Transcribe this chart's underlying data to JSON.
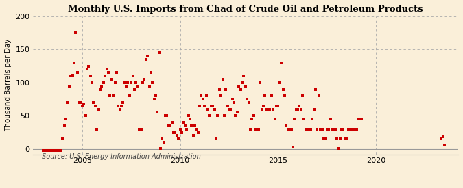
{
  "title": "Monthly U.S. Imports from Chad of Crude Oil and Petroleum Products",
  "ylabel": "Thousand Barrels per Day",
  "source": "Source: U.S. Energy Information Administration",
  "background_color": "#faefd9",
  "dot_color": "#cc0000",
  "ylim_min": -8,
  "ylim_max": 200,
  "yticks": [
    0,
    50,
    100,
    150,
    200
  ],
  "xlim_start": 2002.5,
  "xlim_end": 2024.2,
  "xticks": [
    2005,
    2010,
    2015,
    2020
  ],
  "data": [
    [
      2003.0,
      -2
    ],
    [
      2003.08,
      -2
    ],
    [
      2003.17,
      -2
    ],
    [
      2003.25,
      -2
    ],
    [
      2003.33,
      -2
    ],
    [
      2003.42,
      -2
    ],
    [
      2003.5,
      -2
    ],
    [
      2003.58,
      -2
    ],
    [
      2003.67,
      -2
    ],
    [
      2003.75,
      -2
    ],
    [
      2003.83,
      -2
    ],
    [
      2003.92,
      -2
    ],
    [
      2004.0,
      15
    ],
    [
      2004.08,
      35
    ],
    [
      2004.17,
      45
    ],
    [
      2004.25,
      70
    ],
    [
      2004.33,
      95
    ],
    [
      2004.42,
      110
    ],
    [
      2004.5,
      111
    ],
    [
      2004.58,
      130
    ],
    [
      2004.67,
      175
    ],
    [
      2004.75,
      115
    ],
    [
      2004.83,
      70
    ],
    [
      2004.92,
      70
    ],
    [
      2005.0,
      65
    ],
    [
      2005.08,
      68
    ],
    [
      2005.17,
      50
    ],
    [
      2005.25,
      120
    ],
    [
      2005.33,
      125
    ],
    [
      2005.42,
      110
    ],
    [
      2005.5,
      100
    ],
    [
      2005.58,
      70
    ],
    [
      2005.67,
      65
    ],
    [
      2005.75,
      30
    ],
    [
      2005.83,
      60
    ],
    [
      2005.92,
      90
    ],
    [
      2006.0,
      95
    ],
    [
      2006.08,
      100
    ],
    [
      2006.17,
      110
    ],
    [
      2006.25,
      120
    ],
    [
      2006.33,
      115
    ],
    [
      2006.42,
      80
    ],
    [
      2006.5,
      105
    ],
    [
      2006.58,
      80
    ],
    [
      2006.67,
      100
    ],
    [
      2006.75,
      115
    ],
    [
      2006.83,
      65
    ],
    [
      2006.92,
      60
    ],
    [
      2007.0,
      65
    ],
    [
      2007.08,
      70
    ],
    [
      2007.17,
      100
    ],
    [
      2007.25,
      95
    ],
    [
      2007.33,
      100
    ],
    [
      2007.42,
      80
    ],
    [
      2007.5,
      100
    ],
    [
      2007.58,
      110
    ],
    [
      2007.67,
      90
    ],
    [
      2007.75,
      100
    ],
    [
      2007.83,
      95
    ],
    [
      2007.92,
      30
    ],
    [
      2008.0,
      30
    ],
    [
      2008.08,
      100
    ],
    [
      2008.17,
      105
    ],
    [
      2008.25,
      135
    ],
    [
      2008.33,
      140
    ],
    [
      2008.42,
      95
    ],
    [
      2008.5,
      115
    ],
    [
      2008.58,
      100
    ],
    [
      2008.67,
      75
    ],
    [
      2008.75,
      80
    ],
    [
      2008.83,
      55
    ],
    [
      2008.92,
      145
    ],
    [
      2009.0,
      1
    ],
    [
      2009.08,
      15
    ],
    [
      2009.17,
      10
    ],
    [
      2009.25,
      50
    ],
    [
      2009.33,
      50
    ],
    [
      2009.42,
      35
    ],
    [
      2009.5,
      35
    ],
    [
      2009.58,
      40
    ],
    [
      2009.67,
      25
    ],
    [
      2009.75,
      25
    ],
    [
      2009.83,
      20
    ],
    [
      2009.92,
      15
    ],
    [
      2010.0,
      30
    ],
    [
      2010.08,
      25
    ],
    [
      2010.17,
      40
    ],
    [
      2010.25,
      35
    ],
    [
      2010.33,
      30
    ],
    [
      2010.42,
      50
    ],
    [
      2010.5,
      45
    ],
    [
      2010.58,
      35
    ],
    [
      2010.67,
      20
    ],
    [
      2010.75,
      35
    ],
    [
      2010.83,
      30
    ],
    [
      2010.92,
      25
    ],
    [
      2011.0,
      65
    ],
    [
      2011.08,
      80
    ],
    [
      2011.17,
      75
    ],
    [
      2011.25,
      65
    ],
    [
      2011.33,
      80
    ],
    [
      2011.42,
      60
    ],
    [
      2011.5,
      50
    ],
    [
      2011.58,
      65
    ],
    [
      2011.67,
      65
    ],
    [
      2011.75,
      60
    ],
    [
      2011.83,
      15
    ],
    [
      2011.92,
      50
    ],
    [
      2012.0,
      90
    ],
    [
      2012.08,
      80
    ],
    [
      2012.17,
      105
    ],
    [
      2012.25,
      50
    ],
    [
      2012.33,
      90
    ],
    [
      2012.42,
      65
    ],
    [
      2012.5,
      60
    ],
    [
      2012.58,
      60
    ],
    [
      2012.67,
      75
    ],
    [
      2012.75,
      70
    ],
    [
      2012.83,
      50
    ],
    [
      2012.92,
      55
    ],
    [
      2013.0,
      95
    ],
    [
      2013.08,
      90
    ],
    [
      2013.17,
      100
    ],
    [
      2013.25,
      110
    ],
    [
      2013.33,
      95
    ],
    [
      2013.42,
      75
    ],
    [
      2013.5,
      70
    ],
    [
      2013.58,
      30
    ],
    [
      2013.67,
      45
    ],
    [
      2013.75,
      50
    ],
    [
      2013.83,
      30
    ],
    [
      2013.92,
      30
    ],
    [
      2014.0,
      30
    ],
    [
      2014.08,
      100
    ],
    [
      2014.17,
      60
    ],
    [
      2014.25,
      65
    ],
    [
      2014.33,
      80
    ],
    [
      2014.42,
      60
    ],
    [
      2014.5,
      60
    ],
    [
      2014.58,
      60
    ],
    [
      2014.67,
      80
    ],
    [
      2014.75,
      60
    ],
    [
      2014.83,
      45
    ],
    [
      2014.92,
      65
    ],
    [
      2015.0,
      65
    ],
    [
      2015.08,
      100
    ],
    [
      2015.17,
      130
    ],
    [
      2015.25,
      90
    ],
    [
      2015.33,
      80
    ],
    [
      2015.42,
      35
    ],
    [
      2015.5,
      30
    ],
    [
      2015.58,
      30
    ],
    [
      2015.67,
      30
    ],
    [
      2015.75,
      3
    ],
    [
      2015.83,
      45
    ],
    [
      2015.92,
      60
    ],
    [
      2016.0,
      60
    ],
    [
      2016.08,
      65
    ],
    [
      2016.17,
      60
    ],
    [
      2016.25,
      80
    ],
    [
      2016.33,
      45
    ],
    [
      2016.42,
      30
    ],
    [
      2016.5,
      30
    ],
    [
      2016.58,
      30
    ],
    [
      2016.67,
      30
    ],
    [
      2016.75,
      45
    ],
    [
      2016.83,
      60
    ],
    [
      2016.92,
      90
    ],
    [
      2017.0,
      30
    ],
    [
      2017.08,
      80
    ],
    [
      2017.17,
      30
    ],
    [
      2017.25,
      30
    ],
    [
      2017.33,
      15
    ],
    [
      2017.42,
      15
    ],
    [
      2017.5,
      30
    ],
    [
      2017.58,
      30
    ],
    [
      2017.67,
      45
    ],
    [
      2017.75,
      30
    ],
    [
      2017.83,
      30
    ],
    [
      2017.92,
      30
    ],
    [
      2018.0,
      15
    ],
    [
      2018.08,
      1
    ],
    [
      2018.17,
      15
    ],
    [
      2018.25,
      30
    ],
    [
      2018.33,
      30
    ],
    [
      2018.42,
      15
    ],
    [
      2018.5,
      15
    ],
    [
      2018.58,
      30
    ],
    [
      2018.67,
      30
    ],
    [
      2018.75,
      30
    ],
    [
      2018.83,
      30
    ],
    [
      2018.92,
      30
    ],
    [
      2019.0,
      30
    ],
    [
      2019.08,
      45
    ],
    [
      2019.17,
      45
    ],
    [
      2019.25,
      45
    ],
    [
      2023.33,
      15
    ],
    [
      2023.42,
      18
    ],
    [
      2023.5,
      6
    ]
  ]
}
